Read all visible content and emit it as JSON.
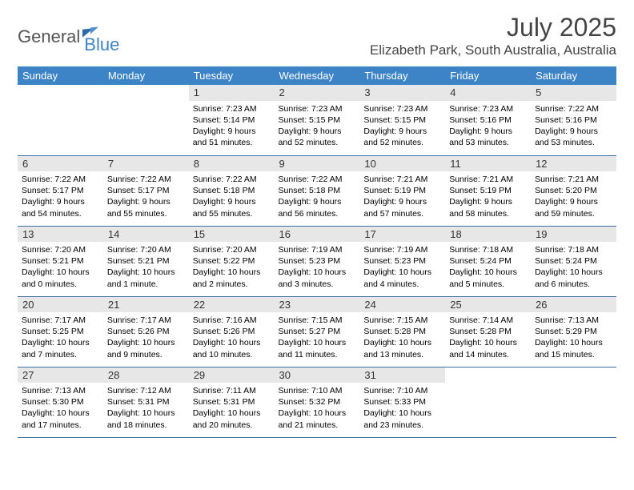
{
  "logo": {
    "word1": "General",
    "word2": "Blue"
  },
  "title": "July 2025",
  "location": "Elizabeth Park, South Australia, Australia",
  "colors": {
    "header_bg": "#3d84c6",
    "header_text": "#ffffff",
    "daynum_bg": "#e7e7e7",
    "rule": "#3d6ea8",
    "logo_gray": "#555555",
    "logo_blue": "#3d84c6"
  },
  "fonts": {
    "title_size_pt": 24,
    "location_size_pt": 12,
    "header_size_pt": 10,
    "daynum_size_pt": 10,
    "body_size_pt": 8
  },
  "weekdays": [
    "Sunday",
    "Monday",
    "Tuesday",
    "Wednesday",
    "Thursday",
    "Friday",
    "Saturday"
  ],
  "weeks": [
    [
      {
        "num": "",
        "sunrise": "",
        "sunset": "",
        "daylight": ""
      },
      {
        "num": "",
        "sunrise": "",
        "sunset": "",
        "daylight": ""
      },
      {
        "num": "1",
        "sunrise": "Sunrise: 7:23 AM",
        "sunset": "Sunset: 5:14 PM",
        "daylight": "Daylight: 9 hours and 51 minutes."
      },
      {
        "num": "2",
        "sunrise": "Sunrise: 7:23 AM",
        "sunset": "Sunset: 5:15 PM",
        "daylight": "Daylight: 9 hours and 52 minutes."
      },
      {
        "num": "3",
        "sunrise": "Sunrise: 7:23 AM",
        "sunset": "Sunset: 5:15 PM",
        "daylight": "Daylight: 9 hours and 52 minutes."
      },
      {
        "num": "4",
        "sunrise": "Sunrise: 7:23 AM",
        "sunset": "Sunset: 5:16 PM",
        "daylight": "Daylight: 9 hours and 53 minutes."
      },
      {
        "num": "5",
        "sunrise": "Sunrise: 7:22 AM",
        "sunset": "Sunset: 5:16 PM",
        "daylight": "Daylight: 9 hours and 53 minutes."
      }
    ],
    [
      {
        "num": "6",
        "sunrise": "Sunrise: 7:22 AM",
        "sunset": "Sunset: 5:17 PM",
        "daylight": "Daylight: 9 hours and 54 minutes."
      },
      {
        "num": "7",
        "sunrise": "Sunrise: 7:22 AM",
        "sunset": "Sunset: 5:17 PM",
        "daylight": "Daylight: 9 hours and 55 minutes."
      },
      {
        "num": "8",
        "sunrise": "Sunrise: 7:22 AM",
        "sunset": "Sunset: 5:18 PM",
        "daylight": "Daylight: 9 hours and 55 minutes."
      },
      {
        "num": "9",
        "sunrise": "Sunrise: 7:22 AM",
        "sunset": "Sunset: 5:18 PM",
        "daylight": "Daylight: 9 hours and 56 minutes."
      },
      {
        "num": "10",
        "sunrise": "Sunrise: 7:21 AM",
        "sunset": "Sunset: 5:19 PM",
        "daylight": "Daylight: 9 hours and 57 minutes."
      },
      {
        "num": "11",
        "sunrise": "Sunrise: 7:21 AM",
        "sunset": "Sunset: 5:19 PM",
        "daylight": "Daylight: 9 hours and 58 minutes."
      },
      {
        "num": "12",
        "sunrise": "Sunrise: 7:21 AM",
        "sunset": "Sunset: 5:20 PM",
        "daylight": "Daylight: 9 hours and 59 minutes."
      }
    ],
    [
      {
        "num": "13",
        "sunrise": "Sunrise: 7:20 AM",
        "sunset": "Sunset: 5:21 PM",
        "daylight": "Daylight: 10 hours and 0 minutes."
      },
      {
        "num": "14",
        "sunrise": "Sunrise: 7:20 AM",
        "sunset": "Sunset: 5:21 PM",
        "daylight": "Daylight: 10 hours and 1 minute."
      },
      {
        "num": "15",
        "sunrise": "Sunrise: 7:20 AM",
        "sunset": "Sunset: 5:22 PM",
        "daylight": "Daylight: 10 hours and 2 minutes."
      },
      {
        "num": "16",
        "sunrise": "Sunrise: 7:19 AM",
        "sunset": "Sunset: 5:23 PM",
        "daylight": "Daylight: 10 hours and 3 minutes."
      },
      {
        "num": "17",
        "sunrise": "Sunrise: 7:19 AM",
        "sunset": "Sunset: 5:23 PM",
        "daylight": "Daylight: 10 hours and 4 minutes."
      },
      {
        "num": "18",
        "sunrise": "Sunrise: 7:18 AM",
        "sunset": "Sunset: 5:24 PM",
        "daylight": "Daylight: 10 hours and 5 minutes."
      },
      {
        "num": "19",
        "sunrise": "Sunrise: 7:18 AM",
        "sunset": "Sunset: 5:24 PM",
        "daylight": "Daylight: 10 hours and 6 minutes."
      }
    ],
    [
      {
        "num": "20",
        "sunrise": "Sunrise: 7:17 AM",
        "sunset": "Sunset: 5:25 PM",
        "daylight": "Daylight: 10 hours and 7 minutes."
      },
      {
        "num": "21",
        "sunrise": "Sunrise: 7:17 AM",
        "sunset": "Sunset: 5:26 PM",
        "daylight": "Daylight: 10 hours and 9 minutes."
      },
      {
        "num": "22",
        "sunrise": "Sunrise: 7:16 AM",
        "sunset": "Sunset: 5:26 PM",
        "daylight": "Daylight: 10 hours and 10 minutes."
      },
      {
        "num": "23",
        "sunrise": "Sunrise: 7:15 AM",
        "sunset": "Sunset: 5:27 PM",
        "daylight": "Daylight: 10 hours and 11 minutes."
      },
      {
        "num": "24",
        "sunrise": "Sunrise: 7:15 AM",
        "sunset": "Sunset: 5:28 PM",
        "daylight": "Daylight: 10 hours and 13 minutes."
      },
      {
        "num": "25",
        "sunrise": "Sunrise: 7:14 AM",
        "sunset": "Sunset: 5:28 PM",
        "daylight": "Daylight: 10 hours and 14 minutes."
      },
      {
        "num": "26",
        "sunrise": "Sunrise: 7:13 AM",
        "sunset": "Sunset: 5:29 PM",
        "daylight": "Daylight: 10 hours and 15 minutes."
      }
    ],
    [
      {
        "num": "27",
        "sunrise": "Sunrise: 7:13 AM",
        "sunset": "Sunset: 5:30 PM",
        "daylight": "Daylight: 10 hours and 17 minutes."
      },
      {
        "num": "28",
        "sunrise": "Sunrise: 7:12 AM",
        "sunset": "Sunset: 5:31 PM",
        "daylight": "Daylight: 10 hours and 18 minutes."
      },
      {
        "num": "29",
        "sunrise": "Sunrise: 7:11 AM",
        "sunset": "Sunset: 5:31 PM",
        "daylight": "Daylight: 10 hours and 20 minutes."
      },
      {
        "num": "30",
        "sunrise": "Sunrise: 7:10 AM",
        "sunset": "Sunset: 5:32 PM",
        "daylight": "Daylight: 10 hours and 21 minutes."
      },
      {
        "num": "31",
        "sunrise": "Sunrise: 7:10 AM",
        "sunset": "Sunset: 5:33 PM",
        "daylight": "Daylight: 10 hours and 23 minutes."
      },
      {
        "num": "",
        "sunrise": "",
        "sunset": "",
        "daylight": ""
      },
      {
        "num": "",
        "sunrise": "",
        "sunset": "",
        "daylight": ""
      }
    ]
  ]
}
